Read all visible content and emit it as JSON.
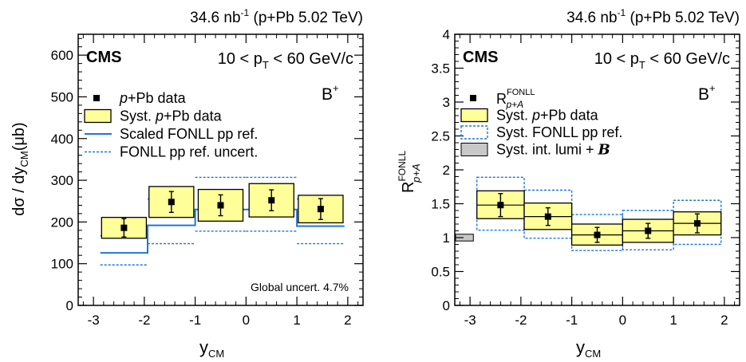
{
  "chart_data": [
    {
      "type": "bar",
      "header": {
        "lumi": "34.6 nb",
        "lumi_sup": "-1",
        "dataset": "(p+Pb 5.02 TeV)"
      },
      "experiment": "CMS",
      "pt_range": {
        "pre": "10 < p",
        "sub": "T",
        "post": " < 60 GeV/c"
      },
      "particle": {
        "base": "B",
        "sup": "+"
      },
      "xlabel": {
        "base": "y",
        "sub": "CM"
      },
      "ylabel": {
        "pre": "dσ / dy",
        "sub": "CM",
        "post": "(μb)"
      },
      "xlim": [
        -3.3,
        2.3
      ],
      "ylim": [
        0,
        650
      ],
      "xticks": [
        -3,
        -2,
        -1,
        0,
        1,
        2
      ],
      "xtick_labels": [
        "-3",
        "-2",
        "-1",
        "0",
        "1",
        "2"
      ],
      "yticks": [
        0,
        100,
        200,
        300,
        400,
        500,
        600
      ],
      "ytick_labels": [
        "0",
        "100",
        "200",
        "300",
        "400",
        "500",
        "600"
      ],
      "legend": [
        {
          "marker": "square",
          "italic": "p",
          "rest": "+Pb data"
        },
        {
          "marker": "yellow-box",
          "prefix": "Syst. ",
          "italic": "p",
          "rest": "+Pb data"
        },
        {
          "marker": "solid-line",
          "rest": "Scaled FONLL pp ref."
        },
        {
          "marker": "dotted-line",
          "rest": "FONLL pp ref. uncert."
        }
      ],
      "annotation": "Global uncert. 4.7%",
      "bins": [
        {
          "x_low": -2.865,
          "x_high": -1.935,
          "value": 186,
          "stat": 22,
          "syst": 25
        },
        {
          "x_low": -1.935,
          "x_high": -1.0,
          "value": 248,
          "stat": 25,
          "syst": 37
        },
        {
          "x_low": -1.0,
          "x_high": 0.0,
          "value": 240,
          "stat": 25,
          "syst": 38
        },
        {
          "x_low": 0.0,
          "x_high": 1.0,
          "value": 252,
          "stat": 25,
          "syst": 40
        },
        {
          "x_low": 1.0,
          "x_high": 1.935,
          "value": 231,
          "stat": 25,
          "syst": 33
        }
      ],
      "fonll_central": [
        {
          "x_low": -2.865,
          "x_high": -1.935,
          "value": 126
        },
        {
          "x_low": -1.935,
          "x_high": -1.0,
          "value": 192
        },
        {
          "x_low": -1.0,
          "x_high": 0.0,
          "value": 230
        },
        {
          "x_low": 0.0,
          "x_high": 1.0,
          "value": 230
        },
        {
          "x_low": 1.0,
          "x_high": 1.935,
          "value": 190
        }
      ],
      "fonll_uncert": [
        {
          "x_low": -2.865,
          "x_high": -1.935,
          "low": 97,
          "high": 167
        },
        {
          "x_low": -1.935,
          "x_high": -1.0,
          "low": 148,
          "high": 255
        },
        {
          "x_low": -1.0,
          "x_high": 0.0,
          "low": 178,
          "high": 307
        },
        {
          "x_low": 0.0,
          "x_high": 1.0,
          "low": 178,
          "high": 307
        },
        {
          "x_low": 1.0,
          "x_high": 1.935,
          "low": 148,
          "high": 255
        }
      ]
    },
    {
      "type": "bar",
      "header": {
        "lumi": "34.6 nb",
        "lumi_sup": "-1",
        "dataset": "(p+Pb 5.02 TeV)"
      },
      "experiment": "CMS",
      "pt_range": {
        "pre": "10 < p",
        "sub": "T",
        "post": " < 60 GeV/c"
      },
      "particle": {
        "base": "B",
        "sup": "+"
      },
      "xlabel": {
        "base": "y",
        "sub": "CM"
      },
      "ylabel": {
        "base": "R",
        "sub": "p+A",
        "sup": "FONLL"
      },
      "xlim": [
        -3.3,
        2.3
      ],
      "ylim": [
        0,
        4
      ],
      "xticks": [
        -3,
        -2,
        -1,
        0,
        1,
        2
      ],
      "xtick_labels": [
        "-3",
        "-2",
        "-1",
        "0",
        "1",
        "2"
      ],
      "yticks": [
        0,
        0.5,
        1,
        1.5,
        2,
        2.5,
        3,
        3.5,
        4
      ],
      "ytick_labels": [
        "0",
        "0.5",
        "1",
        "1.5",
        "2",
        "2.5",
        "3",
        "3.5",
        "4"
      ],
      "legend": [
        {
          "marker": "square",
          "base": "R",
          "sub": "p+A",
          "sup": "FONLL"
        },
        {
          "marker": "yellow-box",
          "prefix": "Syst. ",
          "italic": "p",
          "rest": "+Pb data"
        },
        {
          "marker": "dotted-box",
          "rest": "Syst. FONLL pp ref."
        },
        {
          "marker": "gray-box",
          "rest": "Syst. int. lumi + ",
          "script": "B"
        }
      ],
      "lumi_box": {
        "x_low": -3.3,
        "x_high": -2.95,
        "low": 0.95,
        "high": 1.05
      },
      "bins": [
        {
          "x_low": -2.865,
          "x_high": -1.935,
          "value": 1.48,
          "stat": 0.17,
          "syst_low": 1.28,
          "syst_high": 1.69,
          "fonll_low": 1.11,
          "fonll_high": 1.89
        },
        {
          "x_low": -1.935,
          "x_high": -1.0,
          "value": 1.31,
          "stat": 0.13,
          "syst_low": 1.12,
          "syst_high": 1.51,
          "fonll_low": 0.99,
          "fonll_high": 1.7
        },
        {
          "x_low": -1.0,
          "x_high": 0.0,
          "value": 1.04,
          "stat": 0.11,
          "syst_low": 0.89,
          "syst_high": 1.2,
          "fonll_low": 0.81,
          "fonll_high": 1.34
        },
        {
          "x_low": 0.0,
          "x_high": 1.0,
          "value": 1.1,
          "stat": 0.11,
          "syst_low": 0.93,
          "syst_high": 1.27,
          "fonll_low": 0.82,
          "fonll_high": 1.4
        },
        {
          "x_low": 1.0,
          "x_high": 1.935,
          "value": 1.21,
          "stat": 0.14,
          "syst_low": 1.04,
          "syst_high": 1.38,
          "fonll_low": 0.9,
          "fonll_high": 1.55
        }
      ]
    }
  ]
}
